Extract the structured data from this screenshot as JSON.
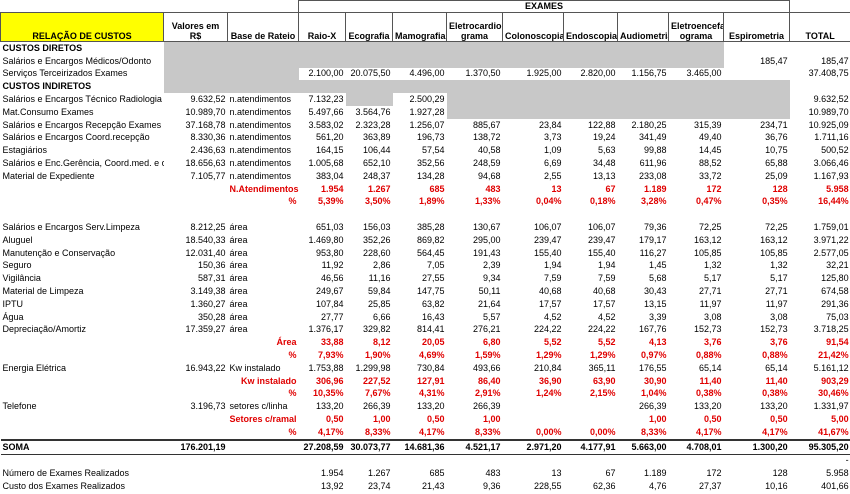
{
  "header": {
    "group": "EXAMES",
    "columns": [
      "RELAÇÃO DE CUSTOS",
      "Valores em R$",
      "Base de Rateio",
      "Raio-X",
      "Ecografia",
      "Mamografia",
      "Eletrocardio grama",
      "Colonoscopia",
      "Endoscopia",
      "Audiometria",
      "Eletroencefal ograma",
      "Espirometria",
      "TOTAL"
    ]
  },
  "table": {
    "rows": [
      [
        "CUSTOS DIRETOS",
        null,
        null,
        null,
        null,
        null,
        null,
        null,
        null,
        null,
        null,
        null,
        null
      ],
      [
        "Salários e Encargos Médicos/Odonto",
        null,
        null,
        null,
        null,
        null,
        null,
        null,
        null,
        null,
        null,
        "185,47",
        "185,47"
      ],
      [
        "Serviços Terceirizados Exames",
        null,
        null,
        "2.100,00",
        "20.075,50",
        "4.496,00",
        "1.370,50",
        "1.925,00",
        "2.820,00",
        "1.156,75",
        "3.465,00",
        null,
        "37.408,75"
      ],
      [
        "CUSTOS INDIRETOS",
        null,
        null,
        null,
        null,
        null,
        null,
        null,
        null,
        null,
        null,
        null,
        null
      ],
      [
        "Salários e Encargos Técnico Radiologia",
        "9.632,52",
        "n.atendimentos",
        "7.132,23",
        null,
        "2.500,29",
        null,
        null,
        null,
        null,
        null,
        null,
        "9.632,52"
      ],
      [
        "Mat.Consumo Exames",
        "10.989,70",
        "n.atendimentos",
        "5.497,66",
        "3.564,76",
        "1.927,28",
        null,
        null,
        null,
        null,
        null,
        null,
        "10.989,70"
      ],
      [
        "Salários e Encargos Recepção Exames",
        "37.168,78",
        "n.atendimentos",
        "3.583,02",
        "2.323,28",
        "1.256,07",
        "885,67",
        "23,84",
        "122,88",
        "2.180,25",
        "315,39",
        "234,71",
        "10.925,09"
      ],
      [
        "Salários e Encargos Coord.recepção",
        "8.330,36",
        "n.atendimentos",
        "561,20",
        "363,89",
        "196,73",
        "138,72",
        "3,73",
        "19,24",
        "341,49",
        "49,40",
        "36,76",
        "1.711,16"
      ],
      [
        "Estagiários",
        "2.436,63",
        "n.atendimentos",
        "164,15",
        "106,44",
        "57,54",
        "40,58",
        "1,09",
        "5,63",
        "99,88",
        "14,45",
        "10,75",
        "500,52"
      ],
      [
        "Salários e Enc.Gerência, Coord.med. e odo",
        "18.656,63",
        "n.atendimentos",
        "1.005,68",
        "652,10",
        "352,56",
        "248,59",
        "6,69",
        "34,48",
        "611,96",
        "88,52",
        "65,88",
        "3.066,46"
      ],
      [
        "Material de Expediente",
        "7.105,77",
        "n.atendimentos",
        "383,04",
        "248,37",
        "134,28",
        "94,68",
        "2,55",
        "13,13",
        "233,08",
        "33,72",
        "25,09",
        "1.167,93"
      ],
      [
        null,
        null,
        "N.Atendimentos",
        "1.954",
        "1.267",
        "685",
        "483",
        "13",
        "67",
        "1.189",
        "172",
        "128",
        "5.958"
      ],
      [
        null,
        null,
        "%",
        "5,39%",
        "3,50%",
        "1,89%",
        "1,33%",
        "0,04%",
        "0,18%",
        "3,28%",
        "0,47%",
        "0,35%",
        "16,44%"
      ],
      [
        null,
        null,
        null,
        null,
        null,
        null,
        null,
        null,
        null,
        null,
        null,
        null,
        null
      ],
      [
        "Salários e Encargos Serv.Limpeza",
        "8.212,25",
        "área",
        "651,03",
        "156,03",
        "385,28",
        "130,67",
        "106,07",
        "106,07",
        "79,36",
        "72,25",
        "72,25",
        "1.759,01"
      ],
      [
        "Aluguel",
        "18.540,33",
        "área",
        "1.469,80",
        "352,26",
        "869,82",
        "295,00",
        "239,47",
        "239,47",
        "179,17",
        "163,12",
        "163,12",
        "3.971,22"
      ],
      [
        "Manutenção e Conservação",
        "12.031,40",
        "área",
        "953,80",
        "228,60",
        "564,45",
        "191,43",
        "155,40",
        "155,40",
        "116,27",
        "105,85",
        "105,85",
        "2.577,05"
      ],
      [
        "Seguro",
        "150,36",
        "área",
        "11,92",
        "2,86",
        "7,05",
        "2,39",
        "1,94",
        "1,94",
        "1,45",
        "1,32",
        "1,32",
        "32,21"
      ],
      [
        "Vigilância",
        "587,31",
        "área",
        "46,56",
        "11,16",
        "27,55",
        "9,34",
        "7,59",
        "7,59",
        "5,68",
        "5,17",
        "5,17",
        "125,80"
      ],
      [
        "Material de Limpeza",
        "3.149,38",
        "área",
        "249,67",
        "59,84",
        "147,75",
        "50,11",
        "40,68",
        "40,68",
        "30,43",
        "27,71",
        "27,71",
        "674,58"
      ],
      [
        "IPTU",
        "1.360,27",
        "área",
        "107,84",
        "25,85",
        "63,82",
        "21,64",
        "17,57",
        "17,57",
        "13,15",
        "11,97",
        "11,97",
        "291,36"
      ],
      [
        "Água",
        "350,28",
        "área",
        "27,77",
        "6,66",
        "16,43",
        "5,57",
        "4,52",
        "4,52",
        "3,39",
        "3,08",
        "3,08",
        "75,03"
      ],
      [
        "Depreciação/Amortiz",
        "17.359,27",
        "área",
        "1.376,17",
        "329,82",
        "814,41",
        "276,21",
        "224,22",
        "224,22",
        "167,76",
        "152,73",
        "152,73",
        "3.718,25"
      ],
      [
        null,
        null,
        "Área",
        "33,88",
        "8,12",
        "20,05",
        "6,80",
        "5,52",
        "5,52",
        "4,13",
        "3,76",
        "3,76",
        "91,54"
      ],
      [
        null,
        null,
        "%",
        "7,93%",
        "1,90%",
        "4,69%",
        "1,59%",
        "1,29%",
        "1,29%",
        "0,97%",
        "0,88%",
        "0,88%",
        "21,42%"
      ],
      [
        "Energia Elétrica",
        "16.943,22",
        "Kw instalado",
        "1.753,88",
        "1.299,98",
        "730,84",
        "493,66",
        "210,84",
        "365,11",
        "176,55",
        "65,14",
        "65,14",
        "5.161,12"
      ],
      [
        null,
        null,
        "Kw instalado",
        "306,96",
        "227,52",
        "127,91",
        "86,40",
        "36,90",
        "63,90",
        "30,90",
        "11,40",
        "11,40",
        "903,29"
      ],
      [
        null,
        null,
        "%",
        "10,35%",
        "7,67%",
        "4,31%",
        "2,91%",
        "1,24%",
        "2,15%",
        "1,04%",
        "0,38%",
        "0,38%",
        "30,46%"
      ],
      [
        "Telefone",
        "3.196,73",
        "setores c/linha",
        "133,20",
        "266,39",
        "133,20",
        "266,39",
        null,
        null,
        "266,39",
        "133,20",
        "133,20",
        "1.331,97"
      ],
      [
        null,
        null,
        "Setores c/ramal",
        "0,50",
        "1,00",
        "0,50",
        "1,00",
        null,
        null,
        "1,00",
        "0,50",
        "0,50",
        "5,00"
      ],
      [
        null,
        null,
        "%",
        "4,17%",
        "8,33%",
        "4,17%",
        "8,33%",
        "0,00%",
        "0,00%",
        "8,33%",
        "4,17%",
        "4,17%",
        "41,67%"
      ],
      [
        "SOMA",
        "176.201,19",
        null,
        "27.208,59",
        "30.073,77",
        "14.681,36",
        "4.521,17",
        "2.971,20",
        "4.177,91",
        "5.663,00",
        "4.708,01",
        "1.300,20",
        "95.305,20"
      ],
      [
        null,
        null,
        null,
        null,
        null,
        null,
        null,
        null,
        null,
        null,
        null,
        null,
        "-"
      ],
      [
        "Número de Exames Realizados",
        null,
        null,
        "1.954",
        "1.267",
        "685",
        "483",
        "13",
        "67",
        "1.189",
        "172",
        "128",
        "5.958"
      ],
      [
        "Custo dos Exames Realizados",
        null,
        null,
        "13,92",
        "23,74",
        "21,43",
        "9,36",
        "228,55",
        "62,36",
        "4,76",
        "27,37",
        "10,16",
        "401,66"
      ]
    ]
  }
}
